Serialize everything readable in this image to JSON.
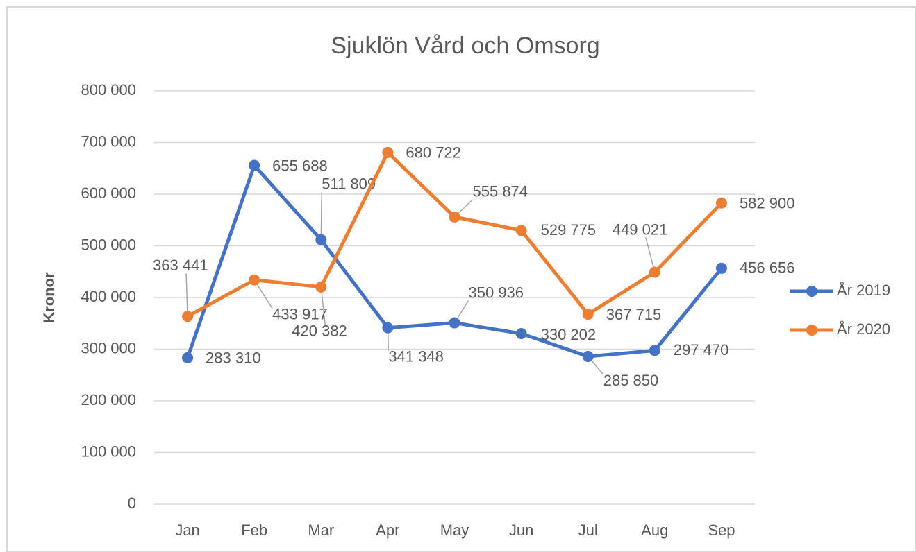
{
  "chart_data": {
    "type": "line",
    "title": "Sjuklön Vård och Omsorg",
    "y_label": "Kronor",
    "categories": [
      "Jan",
      "Feb",
      "Mar",
      "Apr",
      "May",
      "Jun",
      "Jul",
      "Aug",
      "Sep"
    ],
    "series": [
      {
        "name": "År 2019",
        "color": "#4472c4",
        "values": [
          283310,
          655688,
          511809,
          341348,
          350936,
          330202,
          285850,
          297470,
          456656
        ],
        "value_labels": [
          "283 310",
          "655 688",
          "511 809",
          "341 348",
          "350 936",
          "330 202",
          "285 850",
          "297 470",
          "456 656"
        ]
      },
      {
        "name": "År 2020",
        "color": "#ed7d31",
        "values": [
          363441,
          433917,
          420382,
          680722,
          555874,
          529775,
          367715,
          449021,
          582900
        ],
        "value_labels": [
          "363 441",
          "433 917",
          "420 382",
          "680 722",
          "555 874",
          "529 775",
          "367 715",
          "449 021",
          "582 900"
        ]
      }
    ],
    "ylim": [
      0,
      800000
    ],
    "yticks": [
      0,
      {
        "value": 100000,
        "label": "100 000"
      },
      {
        "value": 200000,
        "label": "200 000"
      },
      {
        "value": 300000,
        "label": "300 000"
      },
      {
        "value": 400000,
        "label": "400 000"
      },
      {
        "value": 500000,
        "label": "500 000"
      },
      {
        "value": 600000,
        "label": "600 000"
      },
      {
        "value": 700000,
        "label": "700 000"
      },
      {
        "value": 800000,
        "label": "800 000"
      }
    ],
    "grid": true,
    "legend": "right"
  }
}
